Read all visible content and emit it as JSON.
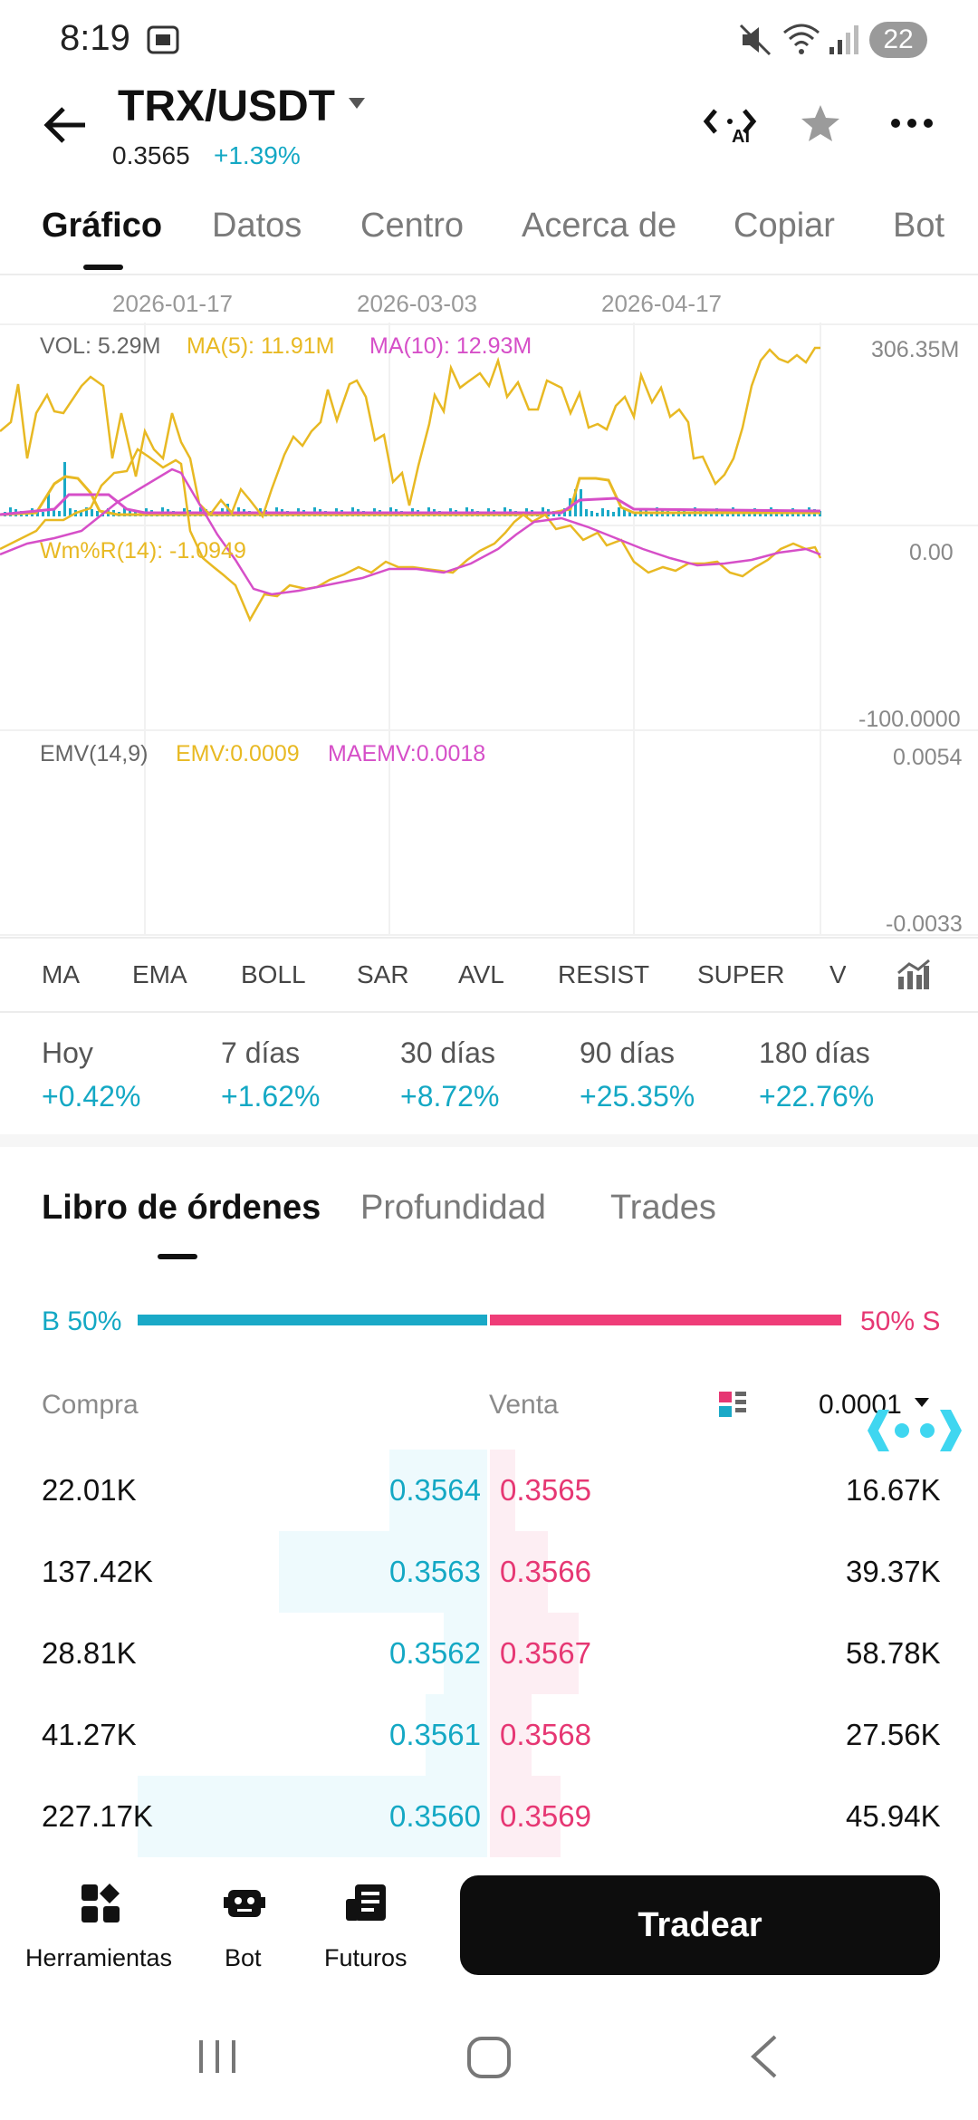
{
  "status_bar": {
    "time": "8:19",
    "badge": "22"
  },
  "header": {
    "pair": "TRX/USDT",
    "price": "0.3565",
    "change": "+1.39%",
    "ai_label": "AI"
  },
  "tabs": [
    {
      "label": "Gráfico"
    },
    {
      "label": "Datos"
    },
    {
      "label": "Centro"
    },
    {
      "label": "Acerca de"
    },
    {
      "label": "Copiar"
    },
    {
      "label": "Bot"
    }
  ],
  "chart": {
    "dates": [
      "2026-01-17",
      "2026-03-03",
      "2026-04-17"
    ],
    "volume": {
      "vol": "VOL: 5.29M",
      "ma5": "MA(5): 11.91M",
      "ma10": "MA(10): 12.93M",
      "max": "306.35M"
    },
    "wmr": {
      "label": "Wm%R(14): -1.0949",
      "top": "0.00",
      "bottom": "-100.0000"
    },
    "emv": {
      "label": "EMV(14,9)",
      "emv": "EMV:0.0009",
      "maemv": "MAEMV:0.0018",
      "top": "0.0054",
      "bottom": "-0.0033"
    },
    "colors": {
      "yellow": "#e8b923",
      "magenta": "#d64fc8",
      "cyan": "#1aa9c7",
      "pink": "#e63773"
    }
  },
  "indicators": [
    "MA",
    "EMA",
    "BOLL",
    "SAR",
    "AVL",
    "RESIST",
    "SUPER",
    "V"
  ],
  "performance": [
    {
      "label": "Hoy",
      "value": "+0.42%"
    },
    {
      "label": "7 días",
      "value": "+1.62%"
    },
    {
      "label": "30 días",
      "value": "+8.72%"
    },
    {
      "label": "90 días",
      "value": "+25.35%"
    },
    {
      "label": "180 días",
      "value": "+22.76%"
    }
  ],
  "orderbook": {
    "tabs": [
      "Libro de órdenes",
      "Profundidad",
      "Trades"
    ],
    "buy_pct": "B 50%",
    "sell_pct": "50% S",
    "buy_ratio": 0.5,
    "col_buy": "Compra",
    "col_sell": "Venta",
    "precision": "0.0001",
    "rows": [
      {
        "bid_qty": "22.01K",
        "bid": "0.3564",
        "ask": "0.3565",
        "ask_qty": "16.67K"
      },
      {
        "bid_qty": "137.42K",
        "bid": "0.3563",
        "ask": "0.3566",
        "ask_qty": "39.37K"
      },
      {
        "bid_qty": "28.81K",
        "bid": "0.3562",
        "ask": "0.3567",
        "ask_qty": "58.78K"
      },
      {
        "bid_qty": "41.27K",
        "bid": "0.3561",
        "ask": "0.3568",
        "ask_qty": "27.56K"
      },
      {
        "bid_qty": "227.17K",
        "bid": "0.3560",
        "ask": "0.3569",
        "ask_qty": "45.94K"
      }
    ]
  },
  "bottom_nav": [
    {
      "label": "Herramientas",
      "icon": "tools-icon"
    },
    {
      "label": "Bot",
      "icon": "bot-icon"
    },
    {
      "label": "Futuros",
      "icon": "futures-icon"
    }
  ],
  "trade_button": "Tradear"
}
